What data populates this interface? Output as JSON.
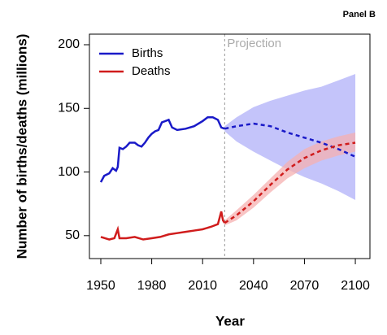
{
  "chart_data": {
    "type": "line",
    "panel_label": "Panel B",
    "x_label": "Year",
    "y_label": "Number of births/deaths (millions)",
    "annotation": "Projection",
    "projection_start": 2023,
    "xlim": [
      1943.3,
      2108.6
    ],
    "ylim": [
      32,
      208.3
    ],
    "xticks": [
      1950,
      1980,
      2010,
      2040,
      2070,
      2100
    ],
    "yticks": [
      50,
      100,
      150,
      200
    ],
    "legend": "top-left",
    "series": [
      {
        "name": "Births",
        "color": "#1a1ac8",
        "band_color": "#c4c4fa",
        "x": [
          1950,
          1952,
          1955,
          1957,
          1959,
          1960,
          1961,
          1963,
          1965,
          1967,
          1970,
          1972,
          1974,
          1976,
          1978,
          1980,
          1982,
          1984,
          1986,
          1988,
          1990,
          1992,
          1995,
          2000,
          2005,
          2010,
          2013,
          2016,
          2019,
          2021,
          2023
        ],
        "values": [
          92,
          97,
          99,
          103,
          101,
          104,
          119,
          118,
          120,
          123,
          123,
          121,
          120,
          123,
          127,
          130,
          132,
          133,
          139,
          140,
          141,
          135,
          133,
          134,
          136,
          140,
          143,
          143,
          141,
          135,
          134
        ],
        "projection": {
          "x": [
            2023,
            2030,
            2040,
            2050,
            2060,
            2070,
            2080,
            2090,
            2100
          ],
          "values": [
            134,
            136,
            138,
            136,
            131,
            127,
            123,
            118,
            112
          ],
          "lower": [
            132,
            124,
            116,
            109,
            102,
            96,
            91,
            85,
            78
          ],
          "upper": [
            136,
            143,
            151,
            156,
            160,
            164,
            167,
            172,
            177
          ]
        }
      },
      {
        "name": "Deaths",
        "color": "#d01c1c",
        "band_color": "#f5b0b0",
        "x": [
          1950,
          1955,
          1958,
          1960,
          1961,
          1965,
          1970,
          1975,
          1980,
          1985,
          1990,
          1995,
          2000,
          2005,
          2010,
          2015,
          2019,
          2020,
          2021,
          2022,
          2023
        ],
        "values": [
          49,
          47,
          48,
          55,
          48,
          48,
          49,
          47,
          48,
          49,
          51,
          52,
          53,
          54,
          55,
          57,
          59,
          64,
          69,
          62,
          60
        ],
        "projection": {
          "x": [
            2023,
            2030,
            2040,
            2050,
            2060,
            2070,
            2080,
            2090,
            2100
          ],
          "values": [
            60,
            66,
            77,
            90,
            102,
            111,
            117,
            121,
            123
          ],
          "lower": [
            58,
            62,
            72,
            84,
            95,
            103,
            109,
            113,
            116
          ],
          "upper": [
            62,
            70,
            82,
            95,
            108,
            118,
            124,
            128,
            131
          ]
        }
      }
    ]
  }
}
